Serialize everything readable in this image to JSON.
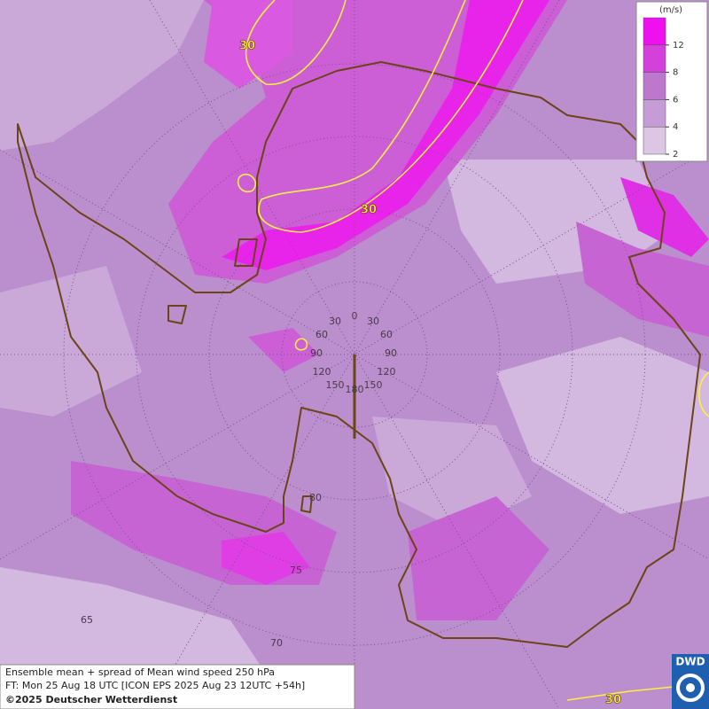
{
  "map": {
    "contour_labels": [
      "30",
      "30",
      "30"
    ],
    "meridian_labels": [
      "0",
      "30",
      "30",
      "60",
      "60",
      "90",
      "90",
      "120",
      "120",
      "150",
      "150",
      "180"
    ],
    "latitude_labels": [
      "80",
      "75",
      "70",
      "65"
    ]
  },
  "legend": {
    "unit": "(m/s)",
    "ticks": [
      2,
      4,
      6,
      8,
      12
    ],
    "colors": [
      "#dcc6e4",
      "#c69cd6",
      "#bb78cc",
      "#d340db",
      "#ef10f0"
    ]
  },
  "footer": {
    "line1": "Ensemble mean + spread of Mean wind speed 250 hPa",
    "line2": "FT: Mon 25 Aug 18 UTC [ICON EPS 2025 Aug 23 12UTC +54h]",
    "line3": "©2025 Deutscher Wetterdienst"
  },
  "logo": "DWD"
}
